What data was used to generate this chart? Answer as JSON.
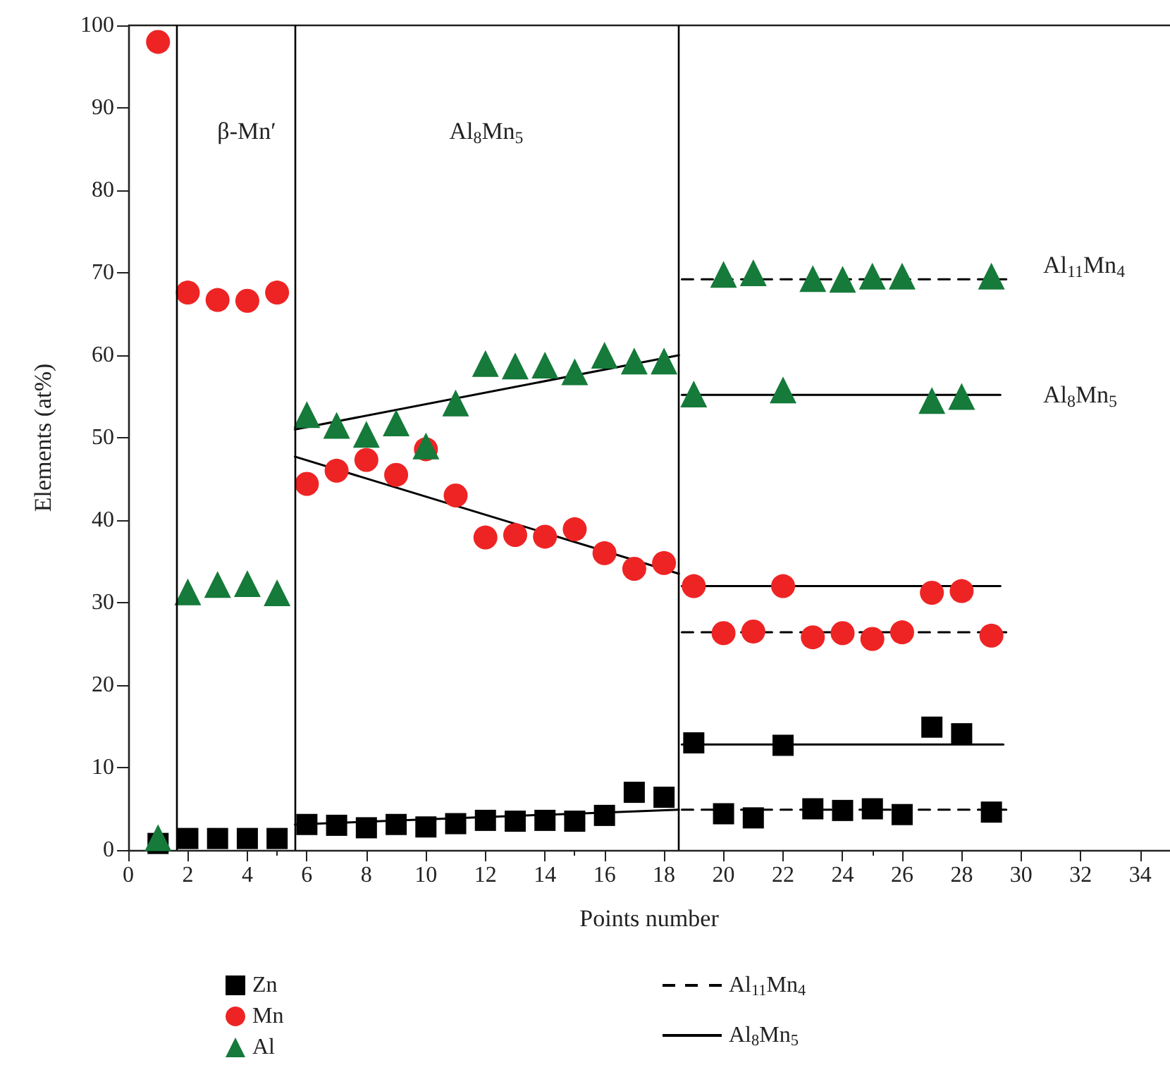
{
  "chart_data": {
    "type": "scatter",
    "xlabel": "Points number",
    "ylabel": "Elements (at%)",
    "x": [
      1,
      2,
      3,
      4,
      5,
      6,
      7,
      8,
      9,
      10,
      11,
      12,
      13,
      14,
      15,
      16,
      17,
      18,
      19,
      20,
      21,
      22,
      23,
      24,
      25,
      26,
      27,
      28,
      29
    ],
    "series": [
      {
        "name": "Zn",
        "color": "#000000",
        "marker": "square",
        "values": [
          0.8,
          1.4,
          1.4,
          1.4,
          1.4,
          3.1,
          3.0,
          2.7,
          3.1,
          2.8,
          3.2,
          3.6,
          3.5,
          3.6,
          3.5,
          4.2,
          7.0,
          6.4,
          13.0,
          4.4,
          3.9,
          12.7,
          5.0,
          4.8,
          5.0,
          4.3,
          14.9,
          14.1,
          4.6
        ]
      },
      {
        "name": "Mn",
        "color": "#ee2424",
        "marker": "circle",
        "values": [
          98,
          67.6,
          66.7,
          66.6,
          67.6,
          44.4,
          46,
          47.3,
          45.5,
          48.6,
          43,
          37.9,
          38.2,
          38,
          38.9,
          36,
          34.1,
          34.8,
          32,
          26.3,
          26.5,
          32,
          25.8,
          26.3,
          25.6,
          26.4,
          31.2,
          31.4,
          26
        ]
      },
      {
        "name": "Al",
        "color": "#157a3a",
        "marker": "triangle",
        "values": [
          1.5,
          31.3,
          32.2,
          32.3,
          31.2,
          52.8,
          51.5,
          50.4,
          51.8,
          49,
          54.2,
          59,
          58.7,
          58.8,
          58,
          60,
          59.3,
          59.3,
          55.3,
          69.8,
          70,
          55.8,
          69.3,
          69.2,
          69.6,
          69.6,
          54.5,
          55,
          69.6
        ]
      },
      {
        "name": "Al$_{11}$Mn$_{4}$",
        "type": "line",
        "color": "#000000",
        "marker": "none",
        "line_style": "dashed",
        "x": [
          18.6,
          29.5
        ],
        "values": [
          69.2,
          69.2
        ]
      },
      {
        "type": "line",
        "color": "#000000",
        "marker": "none",
        "line_style": "dashed",
        "x": [
          18.6,
          29.5
        ],
        "values": [
          26.4,
          26.4
        ]
      },
      {
        "type": "line",
        "color": "#000000",
        "marker": "none",
        "line_style": "dashed",
        "x": [
          18.6,
          29.5
        ],
        "values": [
          4.9,
          4.9
        ]
      },
      {
        "name": "Al$_{8}$Mn$_{5}$",
        "type": "line",
        "color": "#000000",
        "marker": "none",
        "line_style": "solid",
        "x": [
          18.6,
          29.3
        ],
        "values": [
          55.2,
          55.2
        ]
      },
      {
        "type": "line",
        "color": "#000000",
        "marker": "none",
        "line_style": "solid",
        "x": [
          18.6,
          29.3
        ],
        "values": [
          32,
          32
        ]
      },
      {
        "type": "line",
        "color": "#000000",
        "marker": "none",
        "line_style": "solid",
        "x": [
          18.6,
          29.4
        ],
        "values": [
          12.8,
          12.8
        ]
      },
      {
        "type": "line",
        "color": "#000000",
        "marker": "none",
        "line_style": "solid",
        "x": [
          5.6,
          18.5
        ],
        "values": [
          51,
          60
        ]
      },
      {
        "type": "line",
        "color": "#000000",
        "marker": "none",
        "line_style": "solid",
        "x": [
          5.6,
          18.5
        ],
        "values": [
          47.7,
          33.5
        ]
      },
      {
        "type": "line",
        "color": "#000000",
        "marker": "none",
        "line_style": "solid",
        "x": [
          5.6,
          18.5
        ],
        "values": [
          3.1,
          4.9
        ]
      }
    ],
    "xlim": [
      0,
      35
    ],
    "xticks": [
      0,
      2,
      4,
      6,
      8,
      10,
      12,
      14,
      16,
      18,
      20,
      22,
      24,
      26,
      28,
      30,
      32,
      34
    ],
    "ylim": [
      0,
      100
    ],
    "yticks": [
      0,
      10,
      20,
      30,
      40,
      50,
      60,
      70,
      80,
      90,
      100
    ],
    "ref_lines": [
      {
        "axis": "x",
        "value": 1.6,
        "color": "#000000"
      },
      {
        "axis": "x",
        "value": 5.6,
        "color": "#000000"
      },
      {
        "axis": "x",
        "value": 18.5,
        "color": "#000000"
      }
    ],
    "annotations": [
      "β-Mn′",
      "Al$_{8}$Mn$_{5}$",
      "Al$_{11}$Mn$_{4}$",
      "Al$_{8}$Mn$_{5}$"
    ],
    "grid": false,
    "legend": "bottom"
  }
}
